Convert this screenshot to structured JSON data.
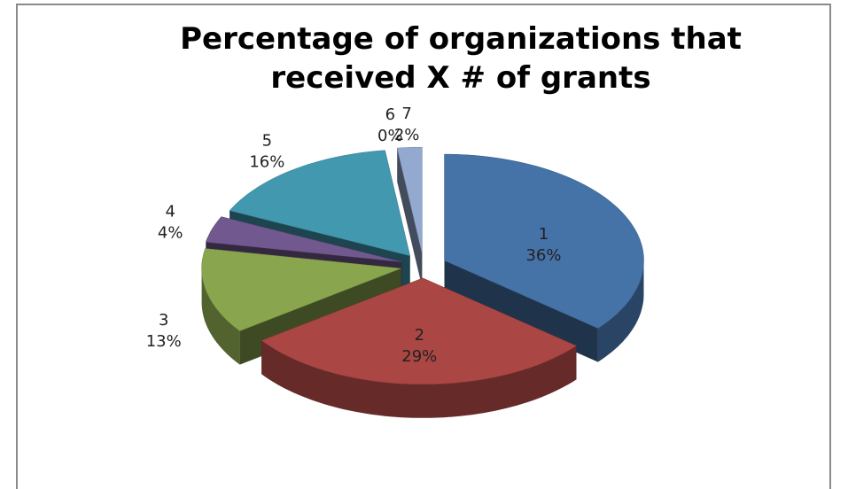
{
  "chart_data": {
    "type": "pie3d",
    "title": "Percentage of organizations that received X # of grants",
    "categories": [
      "1",
      "2",
      "3",
      "4",
      "5",
      "6",
      "7"
    ],
    "values": [
      36,
      29,
      13,
      4,
      16,
      0,
      2
    ],
    "value_labels": [
      "36%",
      "29%",
      "13%",
      "4%",
      "16%",
      "0%",
      "2%"
    ],
    "colors": [
      "#4572a7",
      "#aa4643",
      "#89a54e",
      "#71588f",
      "#4198af",
      "#db843d",
      "#93a9cf"
    ]
  }
}
